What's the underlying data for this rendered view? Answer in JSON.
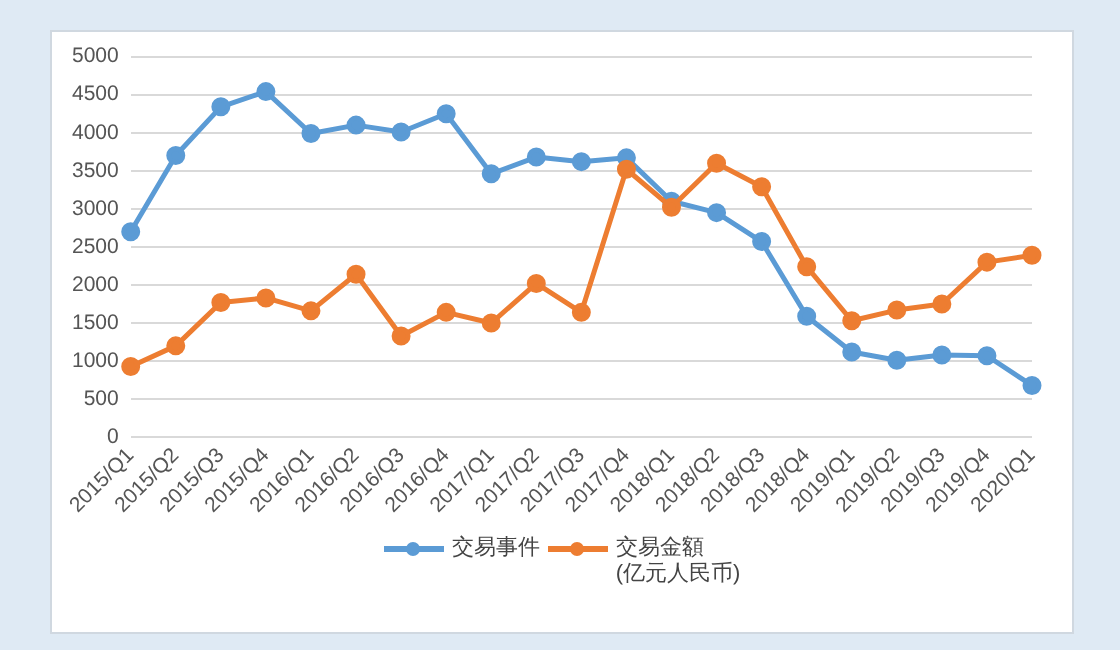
{
  "chart_data": {
    "type": "line",
    "categories": [
      "2015/Q1",
      "2015/Q2",
      "2015/Q3",
      "2015/Q4",
      "2016/Q1",
      "2016/Q2",
      "2016/Q3",
      "2016/Q4",
      "2017/Q1",
      "2017/Q2",
      "2017/Q3",
      "2017/Q4",
      "2018/Q1",
      "2018/Q2",
      "2018/Q3",
      "2018/Q4",
      "2019/Q1",
      "2019/Q2",
      "2019/Q3",
      "2019/Q4",
      "2020/Q1"
    ],
    "series": [
      {
        "name": "交易事件",
        "color": "#5b9bd5",
        "values": [
          2700,
          3700,
          4340,
          4540,
          3990,
          4100,
          4010,
          4250,
          3460,
          3680,
          3620,
          3670,
          3100,
          2950,
          2570,
          1590,
          1120,
          1010,
          1080,
          1070,
          680
        ]
      },
      {
        "name": "交易金額\n(亿元人民币)",
        "color": "#ed7d31",
        "values": [
          930,
          1200,
          1770,
          1830,
          1660,
          2140,
          1330,
          1640,
          1500,
          2020,
          1640,
          3520,
          3020,
          3600,
          3290,
          2240,
          1530,
          1670,
          1750,
          2300,
          2390
        ]
      }
    ],
    "ylim": [
      0,
      5000
    ],
    "yticks": [
      0,
      500,
      1000,
      1500,
      2000,
      2500,
      3000,
      3500,
      4000,
      4500,
      5000
    ],
    "grid": "y",
    "legend": "bottom",
    "marker": "circle",
    "line_style": "solid"
  }
}
